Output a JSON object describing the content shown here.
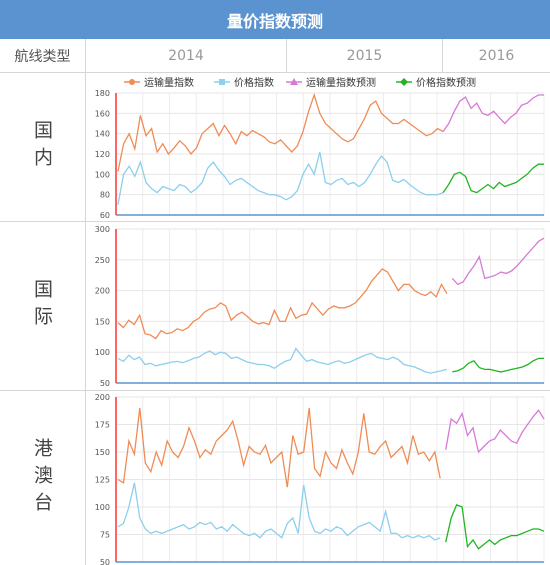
{
  "title": "量价指数预测",
  "header": {
    "type_label": "航线类型",
    "years": [
      "2014",
      "2015",
      "2016"
    ]
  },
  "legend": [
    "运输量指数",
    "价格指数",
    "运输量指数预测",
    "价格指数预测"
  ],
  "colors": {
    "title_bg": "#5b93d0",
    "volume": "#ef8c56",
    "price": "#8ccfee",
    "volume_forecast": "#d77ad7",
    "price_forecast": "#22b522",
    "left_axis": "#ff3333"
  },
  "chart_data": [
    {
      "type": "line",
      "row_label": "国内",
      "y_ticks": [
        60,
        80,
        100,
        120,
        140,
        160,
        180
      ],
      "ylim": [
        60,
        180
      ],
      "series": [
        {
          "name": "运输量指数",
          "values": [
            103,
            130,
            140,
            125,
            158,
            138,
            145,
            122,
            130,
            120,
            126,
            133,
            128,
            120,
            126,
            140,
            145,
            150,
            138,
            148,
            140,
            130,
            142,
            138,
            143,
            140,
            137,
            132,
            130,
            134,
            128,
            122,
            128,
            142,
            162,
            178,
            160,
            150,
            145,
            140,
            135,
            132,
            135,
            145,
            155,
            168,
            172,
            160,
            155,
            150,
            150,
            154,
            150,
            146,
            142,
            138,
            140,
            145,
            142
          ]
        },
        {
          "name": "价格指数",
          "values": [
            70,
            100,
            108,
            98,
            112,
            92,
            86,
            82,
            88,
            86,
            84,
            90,
            88,
            82,
            86,
            92,
            106,
            112,
            104,
            98,
            90,
            94,
            96,
            92,
            88,
            84,
            82,
            80,
            80,
            78,
            75,
            78,
            84,
            100,
            110,
            100,
            122,
            92,
            90,
            94,
            96,
            90,
            92,
            88,
            92,
            100,
            110,
            118,
            112,
            94,
            92,
            95,
            90,
            86,
            82,
            80,
            80,
            80,
            82
          ]
        },
        {
          "name": "运输量指数预测",
          "values": [
            null,
            null,
            null,
            null,
            null,
            null,
            null,
            null,
            null,
            null,
            null,
            null,
            null,
            null,
            null,
            null,
            null,
            null,
            null,
            null,
            null,
            null,
            null,
            null,
            null,
            null,
            null,
            null,
            null,
            null,
            null,
            null,
            null,
            null,
            null,
            null,
            null,
            null,
            null,
            null,
            null,
            null,
            null,
            null,
            null,
            null,
            null,
            null,
            null,
            null,
            null,
            null,
            null,
            null,
            null,
            null,
            null,
            null,
            142,
            150,
            162,
            172,
            176,
            165,
            170,
            160,
            158,
            162,
            156,
            150,
            156,
            160,
            168,
            170,
            175,
            178,
            178
          ]
        },
        {
          "name": "价格指数预测",
          "values": [
            null,
            null,
            null,
            null,
            null,
            null,
            null,
            null,
            null,
            null,
            null,
            null,
            null,
            null,
            null,
            null,
            null,
            null,
            null,
            null,
            null,
            null,
            null,
            null,
            null,
            null,
            null,
            null,
            null,
            null,
            null,
            null,
            null,
            null,
            null,
            null,
            null,
            null,
            null,
            null,
            null,
            null,
            null,
            null,
            null,
            null,
            null,
            null,
            null,
            null,
            null,
            null,
            null,
            null,
            null,
            null,
            null,
            null,
            82,
            90,
            100,
            102,
            98,
            84,
            82,
            86,
            90,
            86,
            92,
            88,
            90,
            92,
            96,
            100,
            106,
            110,
            110
          ]
        }
      ]
    },
    {
      "type": "line",
      "row_label": "国际",
      "y_ticks": [
        50,
        100,
        150,
        200,
        250,
        300
      ],
      "ylim": [
        50,
        300
      ],
      "series": [
        {
          "name": "运输量指数",
          "values": [
            148,
            140,
            152,
            145,
            160,
            130,
            128,
            122,
            135,
            130,
            132,
            138,
            135,
            140,
            150,
            155,
            165,
            170,
            172,
            180,
            175,
            152,
            160,
            165,
            158,
            150,
            146,
            148,
            145,
            168,
            150,
            150,
            172,
            155,
            160,
            162,
            180,
            170,
            160,
            170,
            175,
            172,
            172,
            175,
            180,
            190,
            200,
            215,
            225,
            235,
            230,
            215,
            200,
            210,
            210,
            200,
            195,
            192,
            198,
            190,
            210,
            195
          ]
        },
        {
          "name": "价格指数",
          "values": [
            90,
            85,
            95,
            88,
            92,
            80,
            82,
            78,
            80,
            82,
            84,
            85,
            83,
            86,
            90,
            92,
            98,
            102,
            96,
            100,
            98,
            90,
            92,
            88,
            84,
            82,
            80,
            80,
            78,
            74,
            80,
            85,
            88,
            106,
            95,
            85,
            88,
            84,
            82,
            80,
            84,
            86,
            82,
            84,
            88,
            92,
            96,
            98,
            92,
            90,
            88,
            92,
            88,
            80,
            78,
            76,
            72,
            68,
            66,
            68,
            70,
            72
          ]
        },
        {
          "name": "运输量指数预测",
          "values": [
            null,
            null,
            null,
            null,
            null,
            null,
            null,
            null,
            null,
            null,
            null,
            null,
            null,
            null,
            null,
            null,
            null,
            null,
            null,
            null,
            null,
            null,
            null,
            null,
            null,
            null,
            null,
            null,
            null,
            null,
            null,
            null,
            null,
            null,
            null,
            null,
            null,
            null,
            null,
            null,
            null,
            null,
            null,
            null,
            null,
            null,
            null,
            null,
            null,
            null,
            null,
            null,
            null,
            null,
            null,
            null,
            null,
            null,
            null,
            null,
            null,
            null,
            220,
            210,
            214,
            228,
            240,
            255,
            220,
            222,
            225,
            230,
            228,
            232,
            240,
            250,
            260,
            270,
            280,
            285
          ]
        },
        {
          "name": "价格指数预测",
          "values": [
            null,
            null,
            null,
            null,
            null,
            null,
            null,
            null,
            null,
            null,
            null,
            null,
            null,
            null,
            null,
            null,
            null,
            null,
            null,
            null,
            null,
            null,
            null,
            null,
            null,
            null,
            null,
            null,
            null,
            null,
            null,
            null,
            null,
            null,
            null,
            null,
            null,
            null,
            null,
            null,
            null,
            null,
            null,
            null,
            null,
            null,
            null,
            null,
            null,
            null,
            null,
            null,
            null,
            null,
            null,
            null,
            null,
            null,
            null,
            null,
            null,
            null,
            68,
            70,
            74,
            82,
            86,
            75,
            72,
            72,
            70,
            68,
            70,
            72,
            74,
            76,
            80,
            86,
            90,
            90
          ]
        }
      ]
    },
    {
      "type": "line",
      "row_label": "港澳台",
      "y_ticks": [
        50,
        75,
        100,
        125,
        150,
        175,
        200
      ],
      "ylim": [
        50,
        200
      ],
      "series": [
        {
          "name": "运输量指数",
          "values": [
            125,
            122,
            160,
            148,
            190,
            140,
            132,
            150,
            138,
            160,
            150,
            145,
            155,
            172,
            160,
            145,
            152,
            148,
            160,
            165,
            170,
            178,
            160,
            138,
            155,
            150,
            148,
            156,
            140,
            145,
            150,
            118,
            165,
            148,
            150,
            190,
            135,
            128,
            150,
            140,
            135,
            152,
            140,
            130,
            150,
            185,
            150,
            148,
            155,
            160,
            145,
            150,
            155,
            140,
            165,
            148,
            150,
            142,
            150,
            126
          ]
        },
        {
          "name": "价格指数",
          "values": [
            82,
            85,
            100,
            122,
            90,
            80,
            76,
            78,
            76,
            78,
            80,
            82,
            84,
            80,
            82,
            86,
            84,
            86,
            80,
            82,
            78,
            84,
            80,
            76,
            74,
            76,
            72,
            78,
            80,
            76,
            72,
            85,
            90,
            76,
            120,
            90,
            78,
            76,
            80,
            78,
            82,
            80,
            74,
            78,
            82,
            84,
            86,
            82,
            78,
            96,
            76,
            76,
            72,
            74,
            72,
            74,
            72,
            74,
            70,
            72
          ]
        },
        {
          "name": "运输量指数预测",
          "values": [
            null,
            null,
            null,
            null,
            null,
            null,
            null,
            null,
            null,
            null,
            null,
            null,
            null,
            null,
            null,
            null,
            null,
            null,
            null,
            null,
            null,
            null,
            null,
            null,
            null,
            null,
            null,
            null,
            null,
            null,
            null,
            null,
            null,
            null,
            null,
            null,
            null,
            null,
            null,
            null,
            null,
            null,
            null,
            null,
            null,
            null,
            null,
            null,
            null,
            null,
            null,
            null,
            null,
            null,
            null,
            null,
            null,
            null,
            null,
            null,
            152,
            180,
            176,
            185,
            165,
            172,
            150,
            155,
            160,
            162,
            170,
            165,
            160,
            158,
            168,
            175,
            182,
            188,
            180
          ]
        },
        {
          "name": "价格指数预测",
          "values": [
            null,
            null,
            null,
            null,
            null,
            null,
            null,
            null,
            null,
            null,
            null,
            null,
            null,
            null,
            null,
            null,
            null,
            null,
            null,
            null,
            null,
            null,
            null,
            null,
            null,
            null,
            null,
            null,
            null,
            null,
            null,
            null,
            null,
            null,
            null,
            null,
            null,
            null,
            null,
            null,
            null,
            null,
            null,
            null,
            null,
            null,
            null,
            null,
            null,
            null,
            null,
            null,
            null,
            null,
            null,
            null,
            null,
            null,
            null,
            null,
            68,
            90,
            102,
            100,
            64,
            70,
            62,
            66,
            70,
            66,
            70,
            72,
            74,
            74,
            76,
            78,
            80,
            80,
            78
          ]
        }
      ]
    }
  ]
}
